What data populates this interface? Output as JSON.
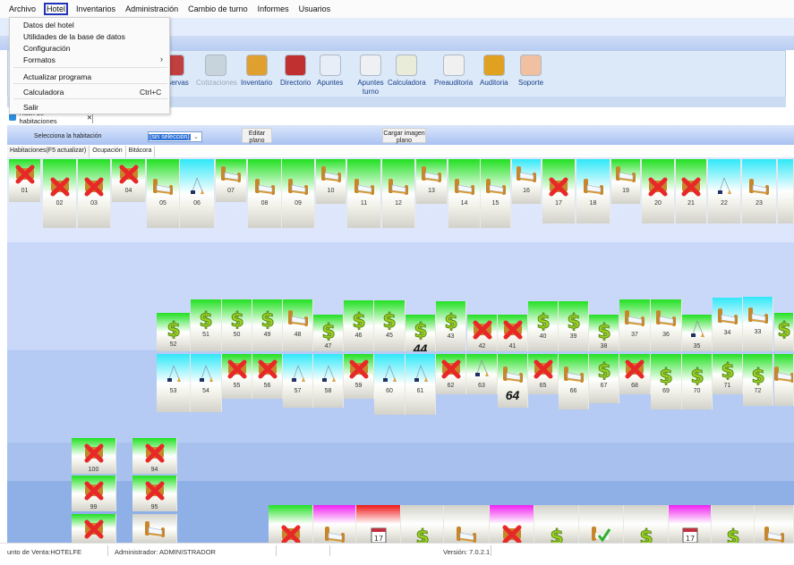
{
  "menu": [
    "Archivo",
    "Hotel",
    "Inventarios",
    "Administración",
    "Cambio de turno",
    "Informes",
    "Usuarios"
  ],
  "active_menu": "Hotel",
  "hotel_menu": [
    {
      "label": "Datos del hotel"
    },
    {
      "label": "Utilidades de la base de datos"
    },
    {
      "label": "Configuración"
    },
    {
      "label": "Formatos",
      "submenu": "›"
    },
    {
      "label": "Actualizar programa"
    },
    {
      "label": "Calculadora",
      "shortcut": "Ctrl+C"
    },
    {
      "label": "Salir"
    }
  ],
  "toolbar": [
    {
      "label": "Reservas",
      "icon": "calendar-icon"
    },
    {
      "label": "Cotizaciones",
      "icon": "quote-icon",
      "disabled": true
    },
    {
      "label": "Inventario",
      "icon": "box-icon"
    },
    {
      "label": "Directorio",
      "icon": "phonebook-icon"
    },
    {
      "label": "Apuntes",
      "icon": "note-icon"
    },
    {
      "label": "Apuntes turno",
      "icon": "shift-note-icon"
    },
    {
      "label": "Calculadora",
      "icon": "calculator-icon"
    },
    {
      "label": "Preauditoria",
      "icon": "magnifier-icon"
    },
    {
      "label": "Auditoria",
      "icon": "auditor-icon"
    },
    {
      "label": "Soporte",
      "icon": "support-icon"
    }
  ],
  "tab": {
    "label": "Rack de habitaciones",
    "close": "✕"
  },
  "controls": {
    "select_label": "Selecciona la habitación",
    "combo_value": "(sin selección)",
    "edit_btn": "Editar plano",
    "load_btn": "Cargar imagen plano"
  },
  "subtabs": [
    "Habitaciones(F5 actualizar)",
    "Ocupación",
    "Bitácora"
  ],
  "colors": {
    "green": "#22e022",
    "cyan": "#30e8f8",
    "magenta": "#f020f0",
    "red": "#f01818",
    "gray": "#d2d2ca"
  },
  "rooms": [
    {
      "n": "01",
      "icon": "x",
      "c": "green"
    },
    {
      "n": "02",
      "icon": "x",
      "c": "green"
    },
    {
      "n": "03",
      "icon": "x",
      "c": "green"
    },
    {
      "n": "04",
      "icon": "x",
      "c": "green"
    },
    {
      "n": "05",
      "icon": "bed",
      "c": "green"
    },
    {
      "n": "06",
      "icon": "broom",
      "c": "cyan"
    },
    {
      "n": "07",
      "icon": "bed",
      "c": "green"
    },
    {
      "n": "08",
      "icon": "bed",
      "c": "green"
    },
    {
      "n": "09",
      "icon": "bed",
      "c": "green"
    },
    {
      "n": "10",
      "icon": "bed",
      "c": "green"
    },
    {
      "n": "11",
      "icon": "bed",
      "c": "green"
    },
    {
      "n": "12",
      "icon": "bed",
      "c": "green"
    },
    {
      "n": "13",
      "icon": "bed",
      "c": "green"
    },
    {
      "n": "14",
      "icon": "bed",
      "c": "green"
    },
    {
      "n": "15",
      "icon": "bed",
      "c": "green"
    },
    {
      "n": "16",
      "icon": "bed",
      "c": "cyan"
    },
    {
      "n": "17",
      "icon": "x",
      "c": "green"
    },
    {
      "n": "18",
      "icon": "bed",
      "c": "cyan"
    },
    {
      "n": "19",
      "icon": "bed",
      "c": "green"
    },
    {
      "n": "20",
      "icon": "x",
      "c": "green"
    },
    {
      "n": "21",
      "icon": "x",
      "c": "green"
    },
    {
      "n": "22",
      "icon": "broom",
      "c": "cyan"
    },
    {
      "n": "23",
      "icon": "bed",
      "c": "cyan"
    },
    {
      "n": "",
      "icon": "",
      "c": "cyan"
    },
    {
      "n": "52",
      "icon": "dollar",
      "c": "green"
    },
    {
      "n": "51",
      "icon": "dollar",
      "c": "green"
    },
    {
      "n": "50",
      "icon": "dollar",
      "c": "green"
    },
    {
      "n": "49",
      "icon": "dollar",
      "c": "green"
    },
    {
      "n": "48",
      "icon": "bed",
      "c": "green"
    },
    {
      "n": "47",
      "icon": "dollar",
      "c": "green"
    },
    {
      "n": "46",
      "icon": "dollar",
      "c": "green"
    },
    {
      "n": "45",
      "icon": "dollar",
      "c": "green"
    },
    {
      "n": "44",
      "icon": "dollar",
      "c": "green",
      "big": true
    },
    {
      "n": "43",
      "icon": "dollar",
      "c": "green"
    },
    {
      "n": "42",
      "icon": "x",
      "c": "green"
    },
    {
      "n": "41",
      "icon": "x",
      "c": "green"
    },
    {
      "n": "40",
      "icon": "dollar",
      "c": "green"
    },
    {
      "n": "39",
      "icon": "dollar",
      "c": "green"
    },
    {
      "n": "38",
      "icon": "dollar",
      "c": "green"
    },
    {
      "n": "37",
      "icon": "bed",
      "c": "green"
    },
    {
      "n": "36",
      "icon": "bed",
      "c": "green"
    },
    {
      "n": "35",
      "icon": "broom",
      "c": "green"
    },
    {
      "n": "34",
      "icon": "bed",
      "c": "cyan"
    },
    {
      "n": "33",
      "icon": "bed",
      "c": "cyan"
    },
    {
      "n": "",
      "icon": "dollar",
      "c": "green"
    },
    {
      "n": "53",
      "icon": "broom",
      "c": "cyan"
    },
    {
      "n": "54",
      "icon": "broom",
      "c": "cyan"
    },
    {
      "n": "55",
      "icon": "x",
      "c": "green"
    },
    {
      "n": "56",
      "icon": "x",
      "c": "green"
    },
    {
      "n": "57",
      "icon": "broom",
      "c": "cyan"
    },
    {
      "n": "58",
      "icon": "broom",
      "c": "cyan"
    },
    {
      "n": "59",
      "icon": "x",
      "c": "green"
    },
    {
      "n": "60",
      "icon": "broom",
      "c": "cyan"
    },
    {
      "n": "61",
      "icon": "broom",
      "c": "cyan"
    },
    {
      "n": "62",
      "icon": "x",
      "c": "green"
    },
    {
      "n": "63",
      "icon": "broom",
      "c": "green"
    },
    {
      "n": "64",
      "icon": "bed",
      "c": "green",
      "big": true
    },
    {
      "n": "65",
      "icon": "x",
      "c": "green"
    },
    {
      "n": "66",
      "icon": "bed",
      "c": "green"
    },
    {
      "n": "67",
      "icon": "dollar",
      "c": "green"
    },
    {
      "n": "68",
      "icon": "x",
      "c": "green"
    },
    {
      "n": "69",
      "icon": "dollar",
      "c": "green"
    },
    {
      "n": "70",
      "icon": "dollar",
      "c": "green"
    },
    {
      "n": "71",
      "icon": "dollar",
      "c": "green"
    },
    {
      "n": "72",
      "icon": "dollar",
      "c": "green"
    },
    {
      "n": "",
      "icon": "bed",
      "c": "green"
    },
    {
      "n": "100",
      "icon": "x",
      "c": "green"
    },
    {
      "n": "94",
      "icon": "x",
      "c": "green"
    },
    {
      "n": "99",
      "icon": "x",
      "c": "green"
    },
    {
      "n": "95",
      "icon": "x",
      "c": "green"
    },
    {
      "n": "",
      "icon": "x",
      "c": "green"
    },
    {
      "n": "",
      "icon": "bed",
      "c": "gray"
    },
    {
      "n": "",
      "icon": "x",
      "c": "green"
    },
    {
      "n": "",
      "icon": "bed",
      "c": "magenta"
    },
    {
      "n": "",
      "icon": "calendar",
      "c": "red"
    },
    {
      "n": "",
      "icon": "dollar",
      "c": "gray"
    },
    {
      "n": "",
      "icon": "bed",
      "c": "gray"
    },
    {
      "n": "",
      "icon": "x",
      "c": "magenta"
    },
    {
      "n": "",
      "icon": "dollar",
      "c": "gray"
    },
    {
      "n": "",
      "icon": "bedcheck",
      "c": "gray"
    },
    {
      "n": "",
      "icon": "dollar",
      "c": "gray"
    },
    {
      "n": "",
      "icon": "calendar",
      "c": "magenta"
    },
    {
      "n": "",
      "icon": "dollar",
      "c": "gray"
    },
    {
      "n": "",
      "icon": "bed",
      "c": "gray"
    }
  ],
  "status": {
    "pos": "unto de Venta:HOTELFE",
    "user": "Administrador: ADMINISTRADOR",
    "version": "Versión: 7.0.2.1"
  }
}
